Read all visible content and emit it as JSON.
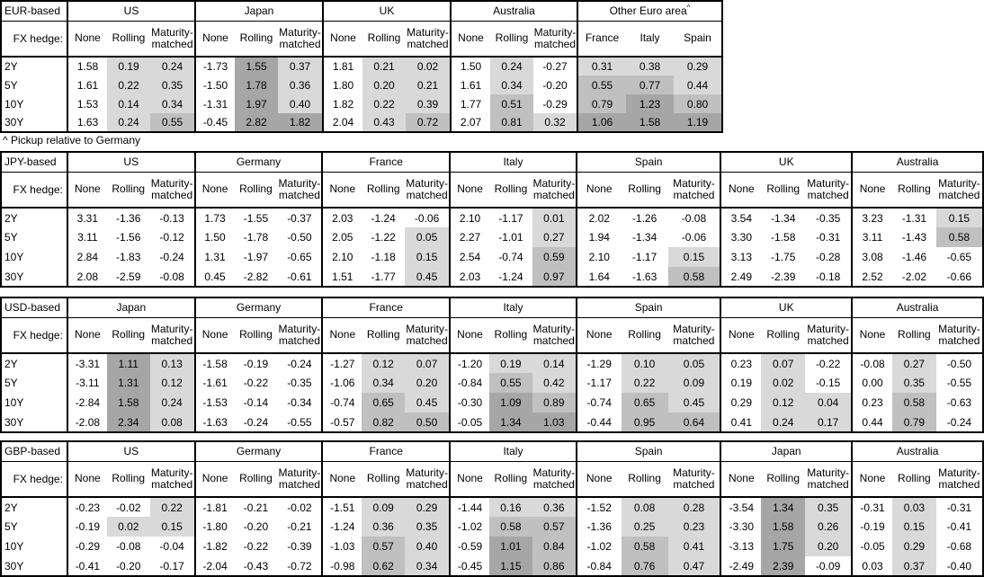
{
  "footnote": "^ Pickup relative to Germany",
  "fx_hedge_label": "FX hedge:",
  "tenors": [
    "2Y",
    "5Y",
    "10Y",
    "30Y"
  ],
  "hedge_types": [
    "None",
    "Rolling",
    "Maturity-matched"
  ],
  "shading_legend": {
    "light": "#d9d9d9",
    "medium": "#c0c0c0",
    "dark": "#a6a6a6",
    "rule": "cell background by value: >0 light, >=0.5 medium, >=1.0 dark; applied to Rolling / Maturity-matched / pickup columns only, None columns unshaded"
  },
  "chart_data": [
    {
      "type": "table",
      "base": "EUR-based",
      "groups": [
        {
          "name": "US",
          "rows": [
            [
              1.58,
              0.19,
              0.24
            ],
            [
              1.61,
              0.22,
              0.35
            ],
            [
              1.53,
              0.14,
              0.34
            ],
            [
              1.63,
              0.24,
              0.55
            ]
          ]
        },
        {
          "name": "Japan",
          "rows": [
            [
              -1.73,
              1.55,
              0.37
            ],
            [
              -1.5,
              1.78,
              0.36
            ],
            [
              -1.31,
              1.97,
              0.4
            ],
            [
              -0.45,
              2.82,
              1.82
            ]
          ]
        },
        {
          "name": "UK",
          "rows": [
            [
              1.81,
              0.21,
              0.02
            ],
            [
              1.8,
              0.2,
              0.21
            ],
            [
              1.82,
              0.22,
              0.39
            ],
            [
              2.04,
              0.43,
              0.72
            ]
          ]
        },
        {
          "name": "Australia",
          "rows": [
            [
              1.5,
              0.24,
              -0.27
            ],
            [
              1.61,
              0.34,
              -0.2
            ],
            [
              1.77,
              0.51,
              -0.29
            ],
            [
              2.07,
              0.81,
              0.32
            ]
          ]
        },
        {
          "name": "Other Euro area",
          "sup": "^",
          "columns": [
            "France",
            "Italy",
            "Spain"
          ],
          "shaded_columns": [
            0,
            1,
            2
          ],
          "rows": [
            [
              0.31,
              0.38,
              0.29
            ],
            [
              0.55,
              0.77,
              0.44
            ],
            [
              0.79,
              1.23,
              0.8
            ],
            [
              1.06,
              1.58,
              1.19
            ]
          ]
        }
      ]
    },
    {
      "type": "table",
      "base": "JPY-based",
      "groups": [
        {
          "name": "US",
          "rows": [
            [
              3.31,
              -1.36,
              -0.13
            ],
            [
              3.11,
              -1.56,
              -0.12
            ],
            [
              2.84,
              -1.83,
              -0.24
            ],
            [
              2.08,
              -2.59,
              -0.08
            ]
          ]
        },
        {
          "name": "Germany",
          "rows": [
            [
              1.73,
              -1.55,
              -0.37
            ],
            [
              1.5,
              -1.78,
              -0.5
            ],
            [
              1.31,
              -1.97,
              -0.65
            ],
            [
              0.45,
              -2.82,
              -0.61
            ]
          ]
        },
        {
          "name": "France",
          "rows": [
            [
              2.03,
              -1.24,
              -0.06
            ],
            [
              2.05,
              -1.22,
              0.05
            ],
            [
              2.1,
              -1.18,
              0.15
            ],
            [
              1.51,
              -1.77,
              0.45
            ]
          ]
        },
        {
          "name": "Italy",
          "rows": [
            [
              2.1,
              -1.17,
              0.01
            ],
            [
              2.27,
              -1.01,
              0.27
            ],
            [
              2.54,
              -0.74,
              0.59
            ],
            [
              2.03,
              -1.24,
              0.97
            ]
          ]
        },
        {
          "name": "Spain",
          "rows": [
            [
              2.02,
              -1.26,
              -0.08
            ],
            [
              1.94,
              -1.34,
              -0.06
            ],
            [
              2.1,
              -1.17,
              0.15
            ],
            [
              1.64,
              -1.63,
              0.58
            ]
          ]
        },
        {
          "name": "UK",
          "rows": [
            [
              3.54,
              -1.34,
              -0.35
            ],
            [
              3.3,
              -1.58,
              -0.31
            ],
            [
              3.13,
              -1.75,
              -0.28
            ],
            [
              2.49,
              -2.39,
              -0.18
            ]
          ]
        },
        {
          "name": "Australia",
          "rows": [
            [
              3.23,
              -1.31,
              0.15
            ],
            [
              3.11,
              -1.43,
              0.58
            ],
            [
              3.08,
              -1.46,
              -0.65
            ],
            [
              2.52,
              -2.02,
              -0.66
            ]
          ]
        }
      ]
    },
    {
      "type": "table",
      "base": "USD-based",
      "groups": [
        {
          "name": "Japan",
          "rows": [
            [
              -3.31,
              1.11,
              0.13
            ],
            [
              -3.11,
              1.31,
              0.12
            ],
            [
              -2.84,
              1.58,
              0.24
            ],
            [
              -2.08,
              2.34,
              0.08
            ]
          ]
        },
        {
          "name": "Germany",
          "rows": [
            [
              -1.58,
              -0.19,
              -0.24
            ],
            [
              -1.61,
              -0.22,
              -0.35
            ],
            [
              -1.53,
              -0.14,
              -0.34
            ],
            [
              -1.63,
              -0.24,
              -0.55
            ]
          ]
        },
        {
          "name": "France",
          "rows": [
            [
              -1.27,
              0.12,
              0.07
            ],
            [
              -1.06,
              0.34,
              0.2
            ],
            [
              -0.74,
              0.65,
              0.45
            ],
            [
              -0.57,
              0.82,
              0.5
            ]
          ]
        },
        {
          "name": "Italy",
          "rows": [
            [
              -1.2,
              0.19,
              0.14
            ],
            [
              -0.84,
              0.55,
              0.42
            ],
            [
              -0.3,
              1.09,
              0.89
            ],
            [
              -0.05,
              1.34,
              1.03
            ]
          ]
        },
        {
          "name": "Spain",
          "rows": [
            [
              -1.29,
              0.1,
              0.05
            ],
            [
              -1.17,
              0.22,
              0.09
            ],
            [
              -0.74,
              0.65,
              0.45
            ],
            [
              -0.44,
              0.95,
              0.64
            ]
          ]
        },
        {
          "name": "UK",
          "rows": [
            [
              0.23,
              0.07,
              -0.22
            ],
            [
              0.19,
              0.02,
              -0.15
            ],
            [
              0.29,
              0.12,
              0.04
            ],
            [
              0.41,
              0.24,
              0.17
            ]
          ]
        },
        {
          "name": "Australia",
          "rows": [
            [
              -0.08,
              0.27,
              -0.5
            ],
            [
              0.0,
              0.35,
              -0.55
            ],
            [
              0.23,
              0.58,
              -0.63
            ],
            [
              0.44,
              0.79,
              -0.24
            ]
          ]
        }
      ]
    },
    {
      "type": "table",
      "base": "GBP-based",
      "groups": [
        {
          "name": "US",
          "rows": [
            [
              -0.23,
              -0.02,
              0.22
            ],
            [
              -0.19,
              0.02,
              0.15
            ],
            [
              -0.29,
              -0.08,
              -0.04
            ],
            [
              -0.41,
              -0.2,
              -0.17
            ]
          ]
        },
        {
          "name": "Germany",
          "rows": [
            [
              -1.81,
              -0.21,
              -0.02
            ],
            [
              -1.8,
              -0.2,
              -0.21
            ],
            [
              -1.82,
              -0.22,
              -0.39
            ],
            [
              -2.04,
              -0.43,
              -0.72
            ]
          ]
        },
        {
          "name": "France",
          "rows": [
            [
              -1.51,
              0.09,
              0.29
            ],
            [
              -1.24,
              0.36,
              0.35
            ],
            [
              -1.03,
              0.57,
              0.4
            ],
            [
              -0.98,
              0.62,
              0.34
            ]
          ]
        },
        {
          "name": "Italy",
          "rows": [
            [
              -1.44,
              0.16,
              0.36
            ],
            [
              -1.02,
              0.58,
              0.57
            ],
            [
              -0.59,
              1.01,
              0.84
            ],
            [
              -0.45,
              1.15,
              0.86
            ]
          ]
        },
        {
          "name": "Spain",
          "rows": [
            [
              -1.52,
              0.08,
              0.28
            ],
            [
              -1.36,
              0.25,
              0.23
            ],
            [
              -1.02,
              0.58,
              0.41
            ],
            [
              -0.84,
              0.76,
              0.47
            ]
          ]
        },
        {
          "name": "Japan",
          "rows": [
            [
              -3.54,
              1.34,
              0.35
            ],
            [
              -3.3,
              1.58,
              0.26
            ],
            [
              -3.13,
              1.75,
              0.2
            ],
            [
              -2.49,
              2.39,
              -0.09
            ]
          ]
        },
        {
          "name": "Australia",
          "rows": [
            [
              -0.31,
              0.03,
              -0.31
            ],
            [
              -0.19,
              0.15,
              -0.41
            ],
            [
              -0.05,
              0.29,
              -0.68
            ],
            [
              0.03,
              0.37,
              -0.4
            ]
          ]
        }
      ]
    }
  ]
}
